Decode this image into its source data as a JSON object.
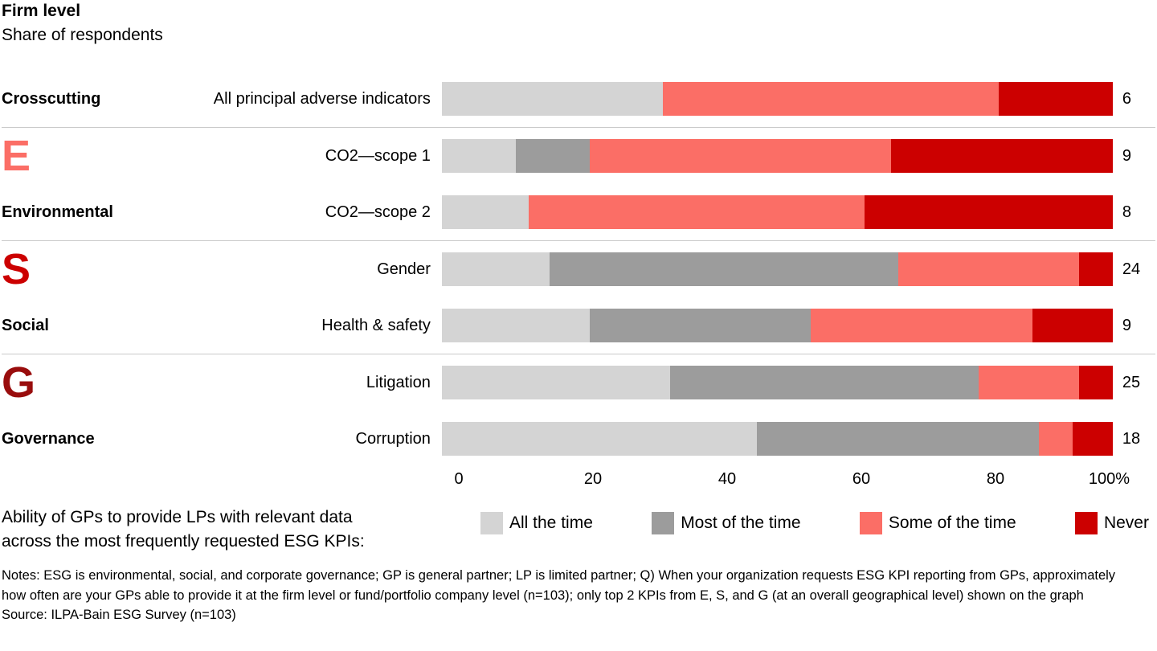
{
  "chart_data": {
    "type": "bar",
    "variant": "horizontal-stacked",
    "title": "Firm level",
    "subtitle": "Share of respondents",
    "unit": "percent of respondents",
    "xlim": [
      0,
      100
    ],
    "x_ticks": [
      "0",
      "20",
      "40",
      "60",
      "80",
      "100%"
    ],
    "legend_position": "bottom",
    "grid": false,
    "legend": [
      {
        "label": "All the time",
        "color": "#d4d4d4"
      },
      {
        "label": "Most of the time",
        "color": "#9c9c9c"
      },
      {
        "label": "Some of the time",
        "color": "#fb6e66"
      },
      {
        "label": "Never",
        "color": "#cc0000"
      }
    ],
    "groups": [
      {
        "id": "crosscutting",
        "letter": "",
        "letter_color": "#000000",
        "label": "Crosscutting",
        "rows": [
          {
            "label": "All principal adverse indicators",
            "values": [
              33,
              0,
              50,
              17
            ],
            "end_value": "6"
          }
        ]
      },
      {
        "id": "environmental",
        "letter": "E",
        "letter_color": "#fb6e66",
        "label": "Environmental",
        "rows": [
          {
            "label": "CO2—scope 1",
            "values": [
              11,
              11,
              45,
              33
            ],
            "end_value": "9"
          },
          {
            "label": "CO2—scope 2",
            "values": [
              13,
              0,
              50,
              37
            ],
            "end_value": "8"
          }
        ]
      },
      {
        "id": "social",
        "letter": "S",
        "letter_color": "#cc0000",
        "label": "Social",
        "rows": [
          {
            "label": "Gender",
            "values": [
              16,
              52,
              27,
              5
            ],
            "end_value": "24"
          },
          {
            "label": "Health & safety",
            "values": [
              22,
              33,
              33,
              12
            ],
            "end_value": "9"
          }
        ]
      },
      {
        "id": "governance",
        "letter": "G",
        "letter_color": "#990d0d",
        "label": "Governance",
        "rows": [
          {
            "label": "Litigation",
            "values": [
              34,
              46,
              15,
              5
            ],
            "end_value": "25"
          },
          {
            "label": "Corruption",
            "values": [
              47,
              42,
              5,
              6
            ],
            "end_value": "18"
          }
        ]
      }
    ]
  },
  "legend_intro": "Ability of GPs to provide LPs with relevant data across the most frequently requested ESG KPIs:",
  "notes": "Notes: ESG is environmental, social, and corporate governance; GP is general partner; LP is limited partner; Q) When your organization requests ESG KPI reporting from GPs, approximately how often are your GPs able to provide it at the firm level or fund/portfolio company level (n=103); only top 2 KPIs from E, S, and G (at an overall geographical level) shown on the graph",
  "source": "Source: ILPA-Bain ESG Survey (n=103)"
}
